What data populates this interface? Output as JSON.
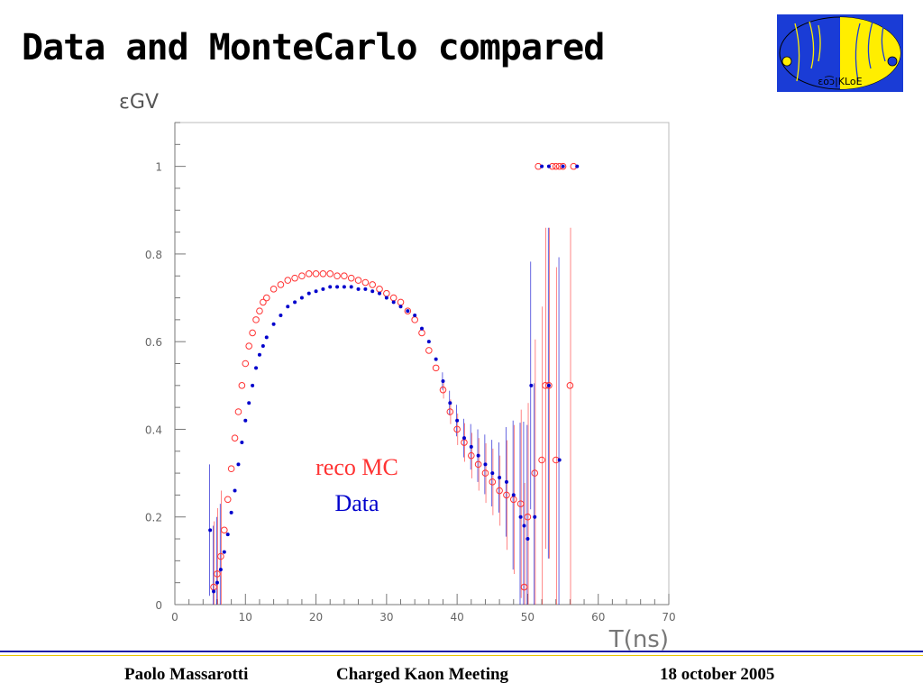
{
  "slide": {
    "title": "Data and MonteCarlo compared",
    "logo_text": "ɛo͡ɔ|KLoE"
  },
  "footer": {
    "author": "Paolo Massarotti",
    "meeting": "Charged Kaon Meeting",
    "date": "18 october 2005"
  },
  "colors": {
    "data": "#0000cc",
    "mc": "#ff3333",
    "axis": "#777777",
    "logo_blue": "#1a3cd6",
    "logo_yellow": "#ffee00"
  },
  "chart_data": {
    "type": "scatter",
    "ylabel": "εGV",
    "xlabel": "T(ns)",
    "xlim": [
      0,
      70
    ],
    "ylim": [
      0,
      1.1
    ],
    "x_ticks": [
      0,
      10,
      20,
      30,
      40,
      50,
      60,
      70
    ],
    "y_ticks": [
      0,
      0.2,
      0.4,
      0.6,
      0.8,
      1
    ],
    "y_tick_labels": [
      "0",
      "0.2",
      "0.4",
      "0.6",
      "0.8",
      "1"
    ],
    "grid": false,
    "legend": {
      "position": "center",
      "entries": [
        "reco MC",
        "Data"
      ]
    },
    "series": [
      {
        "name": "reco MC",
        "marker": "open-circle",
        "points": [
          [
            5.5,
            0.04
          ],
          [
            6.0,
            0.07
          ],
          [
            6.5,
            0.11
          ],
          [
            7.0,
            0.17
          ],
          [
            7.5,
            0.24
          ],
          [
            8.0,
            0.31
          ],
          [
            8.5,
            0.38
          ],
          [
            9.0,
            0.44
          ],
          [
            9.5,
            0.5
          ],
          [
            10.0,
            0.55
          ],
          [
            10.5,
            0.59
          ],
          [
            11.0,
            0.62
          ],
          [
            11.5,
            0.65
          ],
          [
            12.0,
            0.67
          ],
          [
            12.5,
            0.69
          ],
          [
            13.0,
            0.7
          ],
          [
            14.0,
            0.72
          ],
          [
            15.0,
            0.73
          ],
          [
            16.0,
            0.74
          ],
          [
            17.0,
            0.745
          ],
          [
            18.0,
            0.75
          ],
          [
            19.0,
            0.755
          ],
          [
            20.0,
            0.755
          ],
          [
            21.0,
            0.755
          ],
          [
            22.0,
            0.755
          ],
          [
            23.0,
            0.75
          ],
          [
            24.0,
            0.75
          ],
          [
            25.0,
            0.745
          ],
          [
            26.0,
            0.74
          ],
          [
            27.0,
            0.735
          ],
          [
            28.0,
            0.73
          ],
          [
            29.0,
            0.72
          ],
          [
            30.0,
            0.71
          ],
          [
            31.0,
            0.7
          ],
          [
            32.0,
            0.69
          ],
          [
            33.0,
            0.67
          ],
          [
            34.0,
            0.65
          ],
          [
            35.0,
            0.62
          ],
          [
            36.0,
            0.58
          ],
          [
            37.0,
            0.54
          ],
          [
            38.0,
            0.49
          ],
          [
            39.0,
            0.44
          ],
          [
            40.0,
            0.4
          ],
          [
            41.0,
            0.37
          ],
          [
            42.0,
            0.34
          ],
          [
            43.0,
            0.32
          ],
          [
            44.0,
            0.3
          ],
          [
            45.0,
            0.28
          ],
          [
            46.0,
            0.26
          ],
          [
            47.0,
            0.25
          ],
          [
            48.0,
            0.24
          ],
          [
            49.0,
            0.23
          ],
          [
            49.5,
            0.04
          ],
          [
            50.0,
            0.2
          ],
          [
            51.0,
            0.3
          ],
          [
            52.0,
            0.33
          ],
          [
            52.5,
            0.5
          ],
          [
            53.0,
            0.5
          ],
          [
            54.0,
            0.33
          ],
          [
            56.0,
            0.5
          ],
          [
            51.5,
            1.0
          ],
          [
            53.5,
            1.0
          ],
          [
            54.0,
            1.0
          ],
          [
            54.5,
            1.0
          ],
          [
            55.0,
            1.0
          ],
          [
            56.5,
            1.0
          ]
        ]
      },
      {
        "name": "Data",
        "marker": "filled-dot",
        "points": [
          [
            5.0,
            0.17
          ],
          [
            5.5,
            0.03
          ],
          [
            6.0,
            0.05
          ],
          [
            6.5,
            0.08
          ],
          [
            7.0,
            0.12
          ],
          [
            7.5,
            0.16
          ],
          [
            8.0,
            0.21
          ],
          [
            8.5,
            0.26
          ],
          [
            9.0,
            0.32
          ],
          [
            9.5,
            0.37
          ],
          [
            10.0,
            0.42
          ],
          [
            10.5,
            0.46
          ],
          [
            11.0,
            0.5
          ],
          [
            11.5,
            0.54
          ],
          [
            12.0,
            0.57
          ],
          [
            12.5,
            0.59
          ],
          [
            13.0,
            0.61
          ],
          [
            14.0,
            0.64
          ],
          [
            15.0,
            0.66
          ],
          [
            16.0,
            0.68
          ],
          [
            17.0,
            0.69
          ],
          [
            18.0,
            0.7
          ],
          [
            19.0,
            0.71
          ],
          [
            20.0,
            0.715
          ],
          [
            21.0,
            0.72
          ],
          [
            22.0,
            0.725
          ],
          [
            23.0,
            0.725
          ],
          [
            24.0,
            0.725
          ],
          [
            25.0,
            0.725
          ],
          [
            26.0,
            0.72
          ],
          [
            27.0,
            0.72
          ],
          [
            28.0,
            0.715
          ],
          [
            29.0,
            0.71
          ],
          [
            30.0,
            0.7
          ],
          [
            31.0,
            0.69
          ],
          [
            32.0,
            0.68
          ],
          [
            33.0,
            0.67
          ],
          [
            34.0,
            0.66
          ],
          [
            35.0,
            0.63
          ],
          [
            36.0,
            0.6
          ],
          [
            37.0,
            0.56
          ],
          [
            38.0,
            0.51
          ],
          [
            39.0,
            0.46
          ],
          [
            40.0,
            0.42
          ],
          [
            41.0,
            0.38
          ],
          [
            42.0,
            0.36
          ],
          [
            43.0,
            0.34
          ],
          [
            44.0,
            0.32
          ],
          [
            45.0,
            0.3
          ],
          [
            46.0,
            0.29
          ],
          [
            47.0,
            0.28
          ],
          [
            48.0,
            0.25
          ],
          [
            49.0,
            0.2
          ],
          [
            49.5,
            0.18
          ],
          [
            50.0,
            0.15
          ],
          [
            50.5,
            0.5
          ],
          [
            51.0,
            0.2
          ],
          [
            53.0,
            0.5
          ],
          [
            54.5,
            0.33
          ],
          [
            52.0,
            1.0
          ],
          [
            53.0,
            1.0
          ],
          [
            55.0,
            1.0
          ],
          [
            57.0,
            1.0
          ]
        ]
      }
    ]
  }
}
